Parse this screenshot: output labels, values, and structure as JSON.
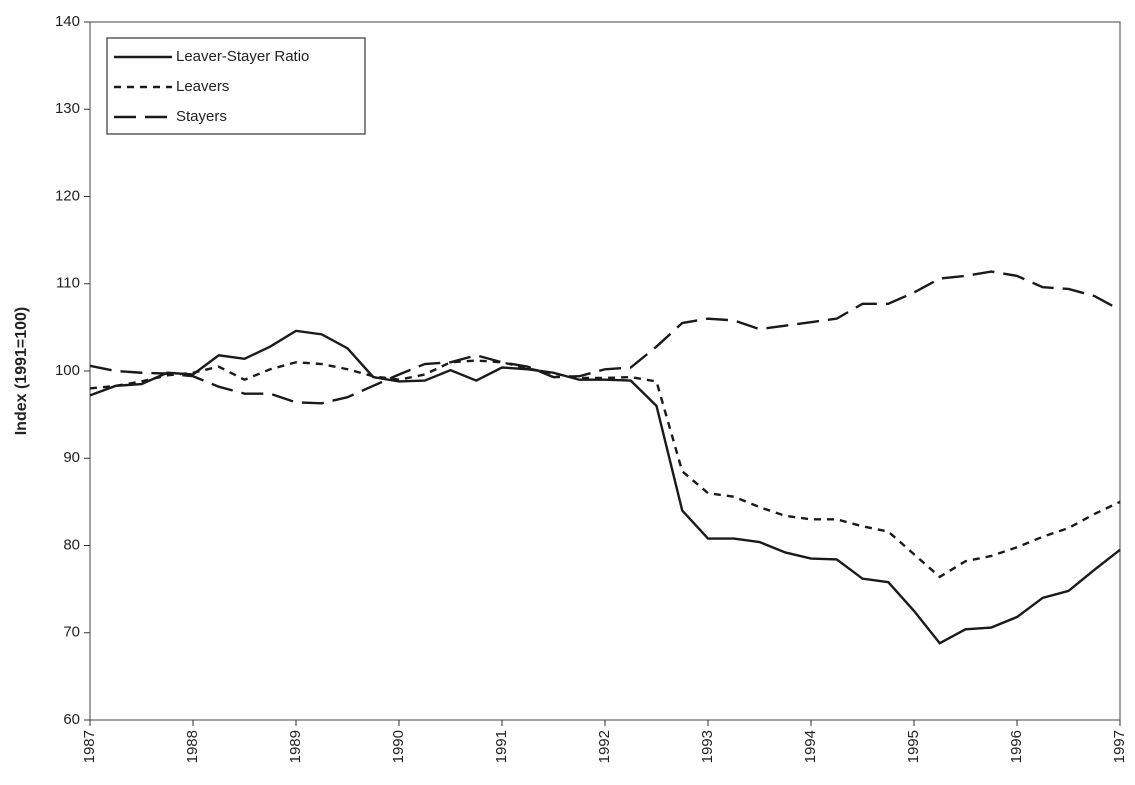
{
  "chart_data": {
    "type": "line",
    "ylabel": "Index (1991=100)",
    "x": [
      1987,
      1987.25,
      1987.5,
      1987.75,
      1988,
      1988.25,
      1988.5,
      1988.75,
      1989,
      1989.25,
      1989.5,
      1989.75,
      1990,
      1990.25,
      1990.5,
      1990.75,
      1991,
      1991.25,
      1991.5,
      1991.75,
      1992,
      1992.25,
      1992.5,
      1992.75,
      1993,
      1993.25,
      1993.5,
      1993.75,
      1994,
      1994.25,
      1994.5,
      1994.75,
      1995,
      1995.25,
      1995.5,
      1995.75,
      1996,
      1996.25,
      1996.5,
      1996.75,
      1997
    ],
    "xlim": [
      1987,
      1997
    ],
    "xticks": [
      1987,
      1988,
      1989,
      1990,
      1991,
      1992,
      1993,
      1994,
      1995,
      1996,
      1997
    ],
    "ylim": [
      60,
      140
    ],
    "yticks": [
      60,
      70,
      80,
      90,
      100,
      110,
      120,
      130,
      140
    ],
    "legend": "top-left",
    "series": [
      {
        "name": "Leaver-Stayer Ratio",
        "color": "#1a1a1a",
        "dash": "solid",
        "values": [
          97.2,
          98.3,
          98.5,
          99.8,
          99.6,
          101.8,
          101.4,
          102.8,
          104.6,
          104.2,
          102.6,
          99.3,
          98.8,
          98.9,
          100.1,
          98.9,
          100.4,
          100.2,
          99.8,
          99.0,
          99.0,
          98.9,
          96.0,
          84.0,
          80.8,
          80.8,
          80.4,
          79.2,
          78.5,
          78.4,
          76.2,
          75.8,
          72.5,
          68.8,
          70.4,
          70.6,
          71.8,
          74.0,
          74.8,
          77.2,
          79.5
        ]
      },
      {
        "name": "Leavers",
        "color": "#1a1a1a",
        "dash": "short",
        "values": [
          98.0,
          98.3,
          98.8,
          99.5,
          99.8,
          100.5,
          99.0,
          100.2,
          101.0,
          100.8,
          100.2,
          99.4,
          99.0,
          99.6,
          101.0,
          101.2,
          101.0,
          100.3,
          99.7,
          99.2,
          99.2,
          99.3,
          98.8,
          88.5,
          86.0,
          85.6,
          84.4,
          83.4,
          83.0,
          83.0,
          82.2,
          81.6,
          79.0,
          76.4,
          78.2,
          78.8,
          79.8,
          81.0,
          82.0,
          83.6,
          85.0
        ]
      },
      {
        "name": "Stayers",
        "color": "#1a1a1a",
        "dash": "long",
        "values": [
          100.6,
          100.0,
          99.8,
          99.7,
          99.4,
          98.2,
          97.4,
          97.4,
          96.4,
          96.3,
          97.0,
          98.3,
          99.6,
          100.8,
          101.0,
          101.8,
          101.0,
          100.5,
          99.3,
          99.4,
          100.2,
          100.4,
          102.8,
          105.5,
          106.0,
          105.8,
          104.8,
          105.2,
          105.6,
          106.0,
          107.7,
          107.7,
          109.0,
          110.6,
          110.9,
          111.4,
          110.9,
          109.6,
          109.4,
          108.6,
          107.0
        ]
      }
    ]
  }
}
